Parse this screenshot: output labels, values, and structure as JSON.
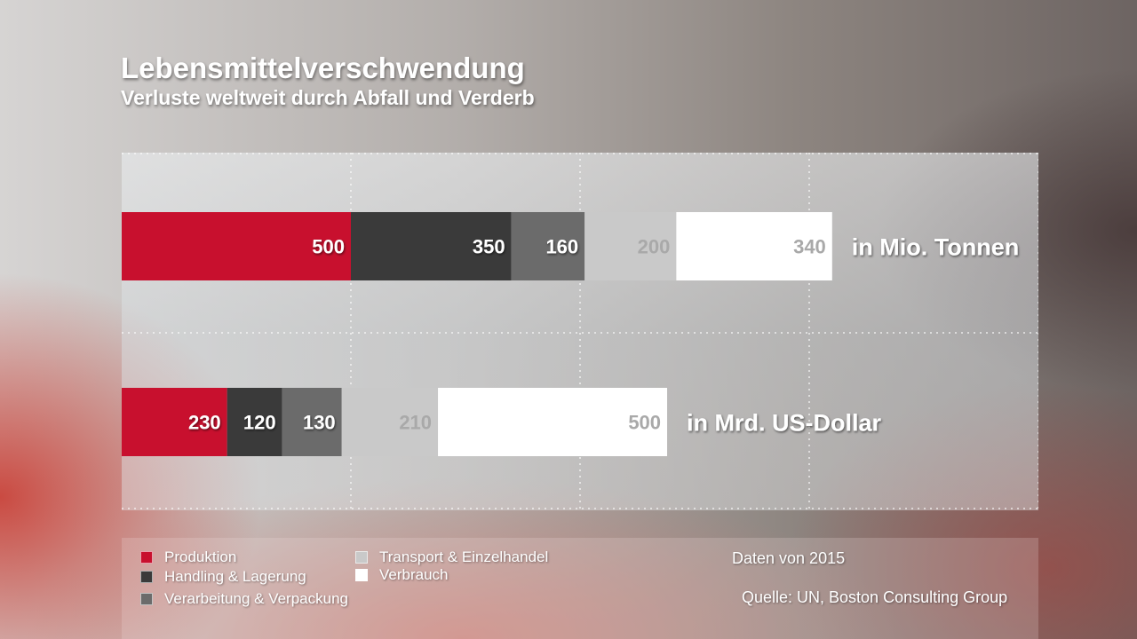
{
  "title": "Lebensmittelverschwendung",
  "subtitle": "Verluste weltweit durch Abfall und Verderb",
  "colors": {
    "Produktion": "#c8102e",
    "Handling & Lagerung": "#3a3a3a",
    "Verarbeitung & Verpackung": "#6b6b6b",
    "Transport & Einzelhandel": "#c9c9c9",
    "Verbrauch": "#ffffff"
  },
  "chart_data": {
    "type": "bar",
    "orientation": "horizontal",
    "stacked": true,
    "categories": [
      "in Mio. Tonnen",
      "in Mrd. US-Dollar"
    ],
    "series": [
      {
        "name": "Produktion",
        "values": [
          500,
          230
        ]
      },
      {
        "name": "Handling & Lagerung",
        "values": [
          350,
          120
        ]
      },
      {
        "name": "Verarbeitung & Verpackung",
        "values": [
          160,
          130
        ]
      },
      {
        "name": "Transport & Einzelhandel",
        "values": [
          200,
          210
        ]
      },
      {
        "name": "Verbrauch",
        "values": [
          340,
          500
        ]
      }
    ],
    "xlim": [
      0,
      2000
    ],
    "grid": true,
    "legend_position": "bottom"
  },
  "legend": [
    {
      "label": "Produktion",
      "swatch": "#c8102e"
    },
    {
      "label": "Handling & Lagerung",
      "swatch": "#3a3a3a"
    },
    {
      "label": "Verarbeitung & Verpackung",
      "swatch": "#6b6b6b"
    },
    {
      "label": "Transport & Einzelhandel",
      "swatch": "#c9c9c9"
    },
    {
      "label": "Verbrauch",
      "swatch": "#ffffff"
    }
  ],
  "footer": {
    "date_note": "Daten von 2015",
    "source": "Quelle: UN, Boston Consulting Group"
  }
}
